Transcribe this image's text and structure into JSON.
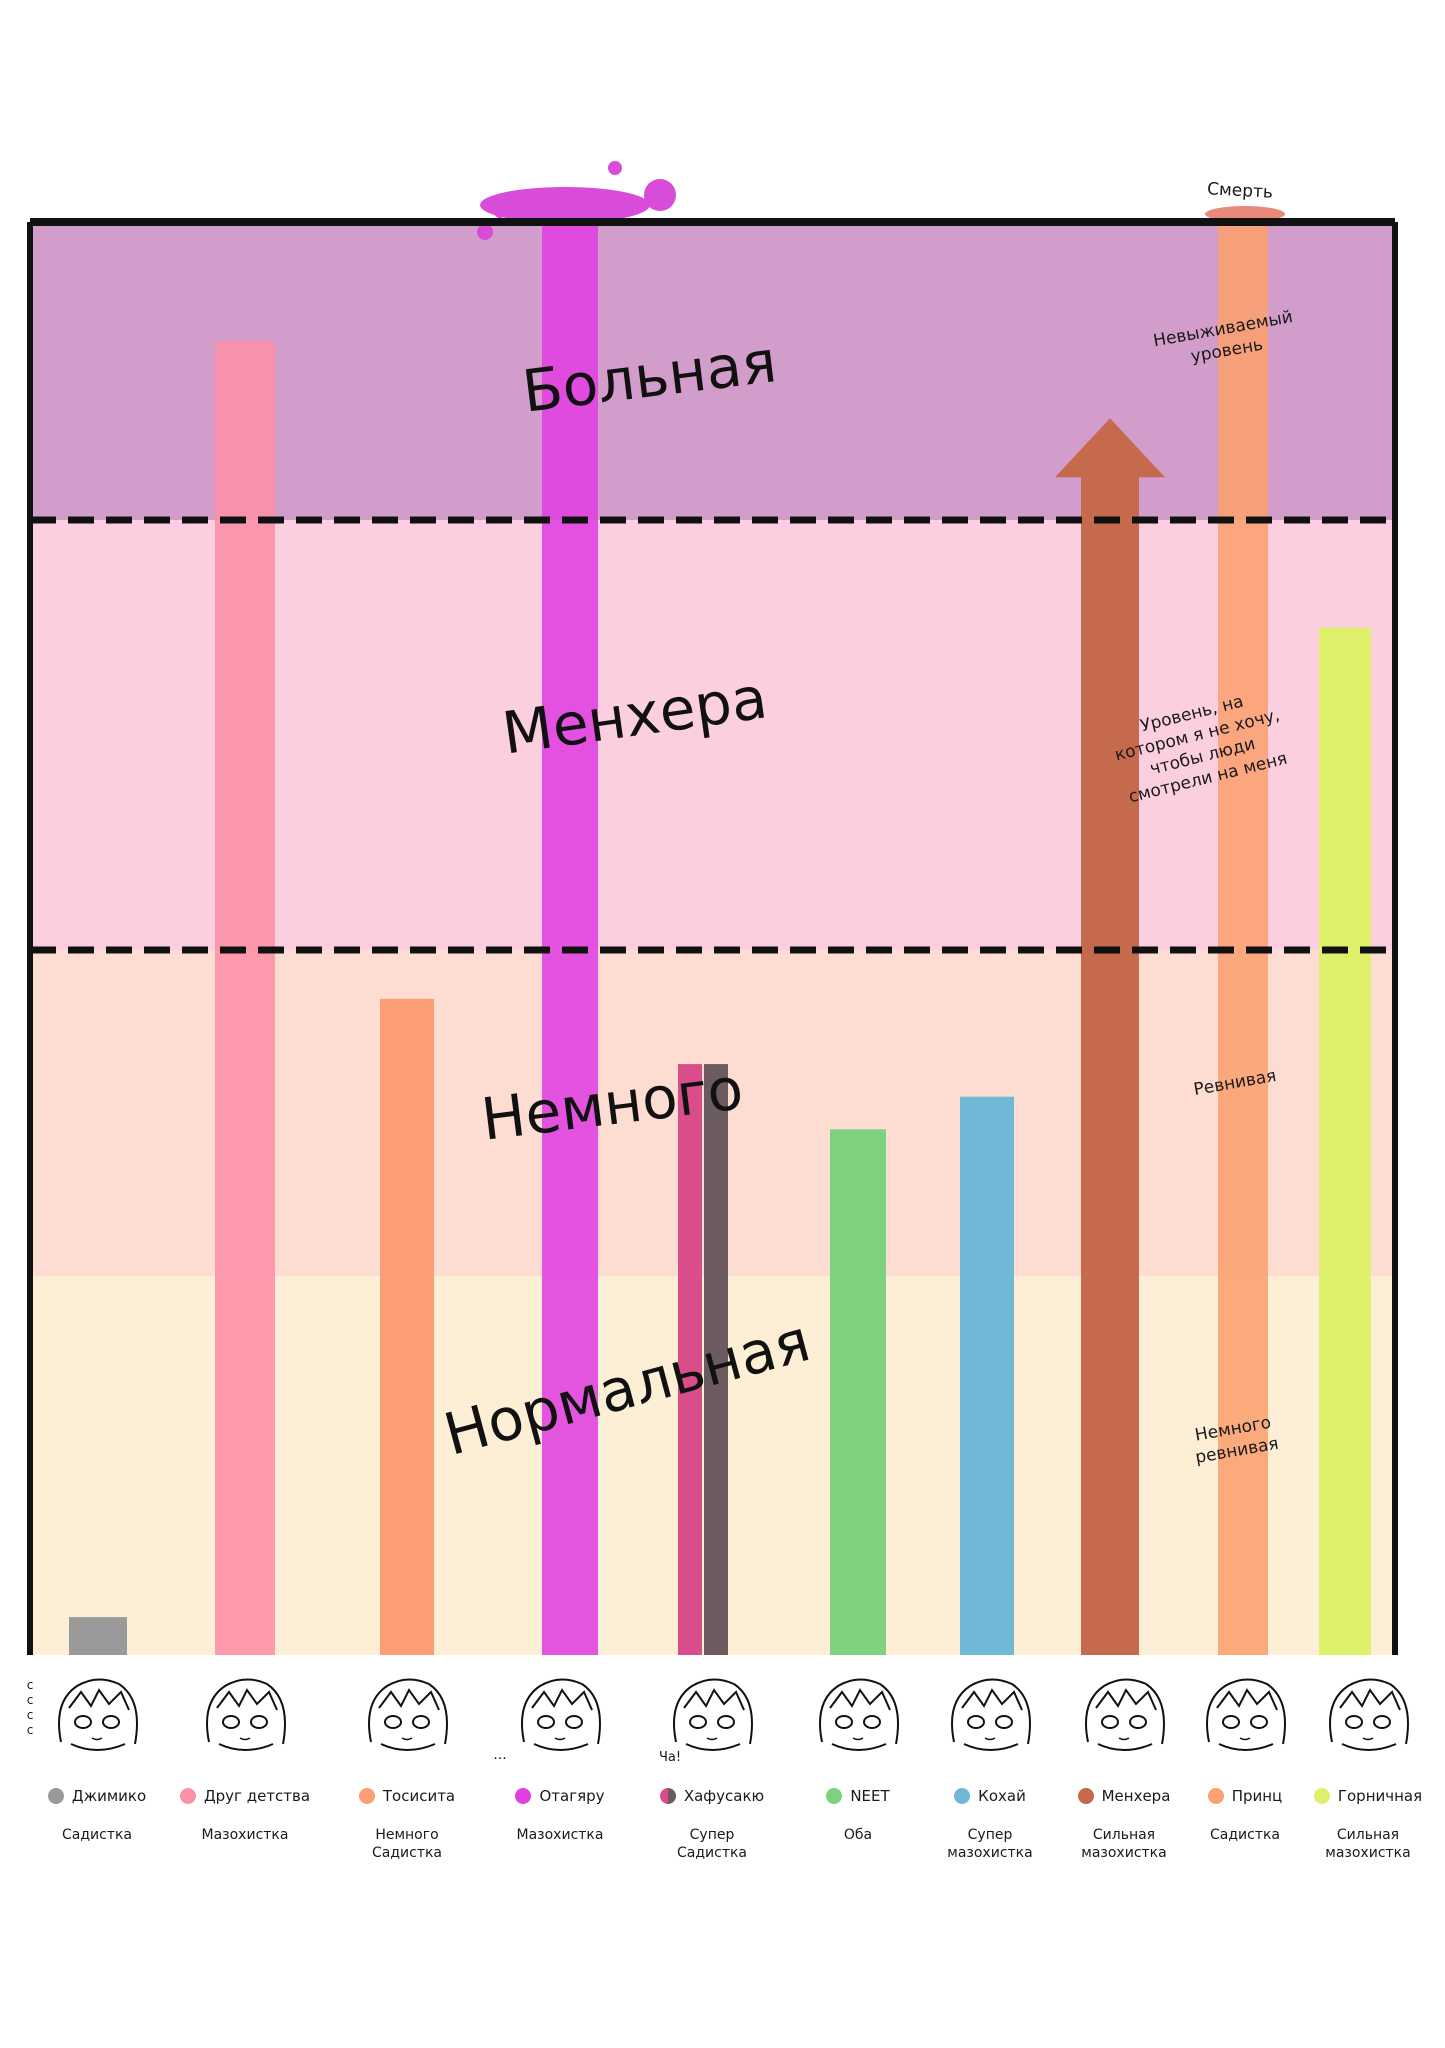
{
  "chart_data": {
    "type": "bar",
    "zones": [
      {
        "label": "Нормальная",
        "color": "#fcefd6"
      },
      {
        "label": "Немного",
        "color": "#fddcd2"
      },
      {
        "label": "Менхера",
        "color": "#fccfe0"
      },
      {
        "label": "Больная",
        "color": "#d39dcb"
      }
    ],
    "ylim": [
      0,
      4
    ],
    "zone_boundaries": [
      1,
      2,
      3
    ],
    "categories": [
      {
        "name": "Джимико",
        "type": "Садистка",
        "color": "#9a9a9a",
        "value": 0.1
      },
      {
        "name": "Друг детства",
        "type": "Мазохистка",
        "color": "#fd8fa6",
        "value": 3.6
      },
      {
        "name": "Тосисита",
        "type": "Немного\nСадистка",
        "color": "#fb9d75",
        "value": 1.85
      },
      {
        "name": "Отагяру",
        "type": "Мазохистка",
        "color": "#e040e0",
        "value": 4.0
      },
      {
        "name": "Хафусакю",
        "type": "Супер\nСадистка",
        "color": "#d94e8a",
        "color2": "#6b5a5e",
        "value": 1.65
      },
      {
        "name": "NEET",
        "type": "Оба",
        "color": "#7fd07f",
        "value": 1.45
      },
      {
        "name": "Кохай",
        "type": "Супер\nмазохистка",
        "color": "#6fb9d7",
        "value": 1.55
      },
      {
        "name": "Менхера",
        "type": "Сильная\nмазохистка",
        "color": "#c56a4c",
        "value": 3.15
      },
      {
        "name": "Принц",
        "type": "Садистка",
        "color": "#fba070",
        "value": 4.0
      },
      {
        "name": "Горничная",
        "type": "Сильная\nмазохистка",
        "color": "#dff06a",
        "value": 2.75
      }
    ]
  },
  "annotations": {
    "death": "Смерть",
    "unsurvivable": "Невыживаемый\nуровень",
    "dont_look": "Уровень, на\nкотором я не хочу,\nчтобы люди\nсмотрели на меня",
    "jealous": "Ревнивая",
    "slightly_jealous": "Немного\nревнивая",
    "ha": "Ча!",
    "dots": "...",
    "small_c": "c\nc\nc\nc"
  }
}
